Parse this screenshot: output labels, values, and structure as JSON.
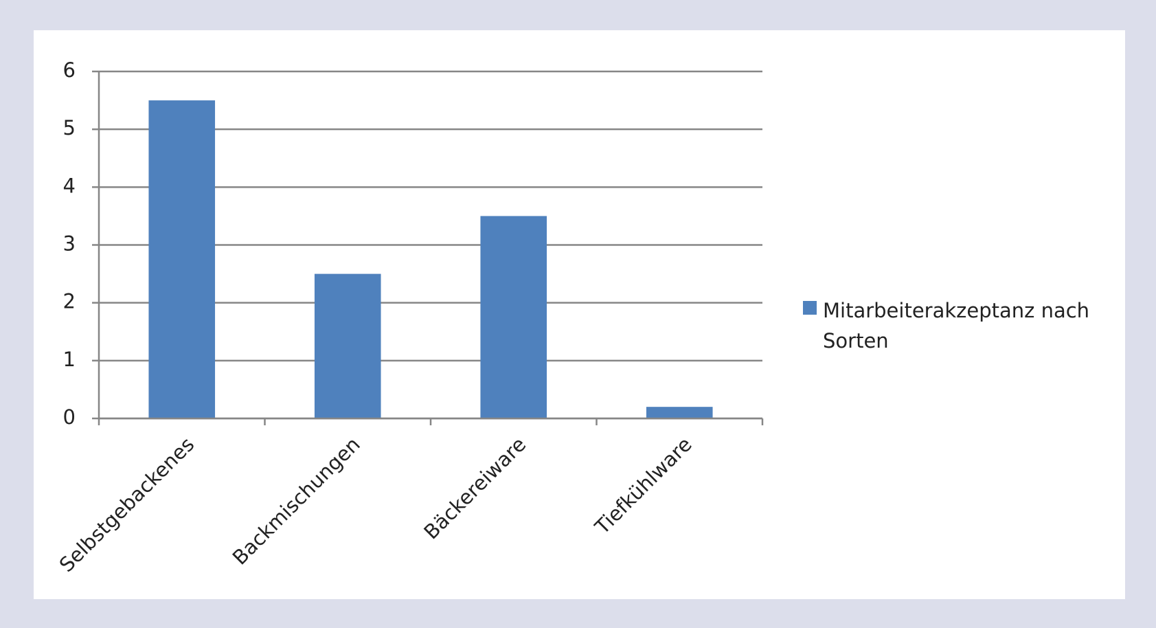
{
  "chart_data": {
    "type": "bar",
    "categories": [
      "Selbstgebackenes",
      "Backmischungen",
      "Bäckereiware",
      "Tiefkühlware"
    ],
    "series": [
      {
        "name": "Mitarbeiterakzeptanz  nach Sorten",
        "color": "#4f81bd",
        "values": [
          5.5,
          2.5,
          3.5,
          0.2
        ]
      }
    ],
    "ylim": [
      0,
      6
    ],
    "yticks": [
      0,
      1,
      2,
      3,
      4,
      5,
      6
    ],
    "grid": true,
    "legend": "right"
  }
}
